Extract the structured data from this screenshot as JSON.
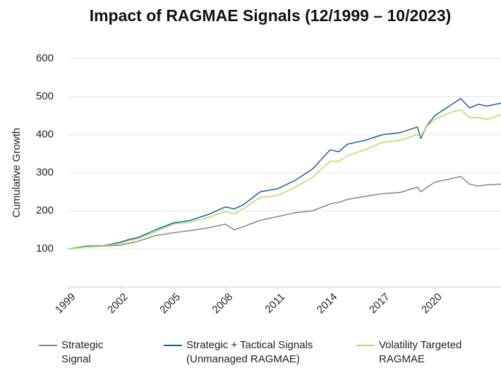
{
  "chart_data": {
    "type": "line",
    "title": "Impact of RAGMAE Signals (12/1999 – 10/2023)",
    "y_label": "Cumulative Growth",
    "x": [
      1999,
      2000,
      2001,
      2002,
      2002.5,
      2003,
      2004,
      2005,
      2006,
      2007,
      2008,
      2008.5,
      2009,
      2010,
      2011,
      2012,
      2013,
      2014,
      2014.5,
      2015,
      2016,
      2017,
      2018,
      2019,
      2019.2,
      2019.5,
      2020,
      2021,
      2021.5,
      2022,
      2022.5,
      2023,
      2023.8
    ],
    "series": [
      {
        "name": "Strategic Signal",
        "color": "#858585",
        "values": [
          100,
          105,
          107,
          110,
          115,
          120,
          135,
          142,
          148,
          155,
          165,
          150,
          158,
          175,
          185,
          195,
          200,
          218,
          222,
          230,
          238,
          245,
          248,
          262,
          250,
          260,
          275,
          285,
          290,
          270,
          265,
          268,
          270
        ]
      },
      {
        "name": "Strategic + Tactical Signals (Unmanaged RAGMAE)",
        "color": "#1a5e9a",
        "values": [
          100,
          107,
          108,
          118,
          125,
          130,
          150,
          168,
          175,
          190,
          210,
          205,
          215,
          250,
          258,
          280,
          310,
          360,
          355,
          375,
          385,
          400,
          405,
          420,
          390,
          420,
          450,
          480,
          495,
          470,
          480,
          475,
          483
        ]
      },
      {
        "name": "Volatility Targeted RAGMAE",
        "color": "#a9e060",
        "values": [
          100,
          105,
          107,
          115,
          122,
          127,
          145,
          165,
          170,
          182,
          198,
          192,
          205,
          235,
          240,
          262,
          288,
          330,
          330,
          345,
          360,
          380,
          385,
          400,
          395,
          420,
          440,
          460,
          465,
          445,
          445,
          440,
          452
        ]
      }
    ],
    "xlim": [
      1999,
      2023.8
    ],
    "xticks": [
      1999,
      2002,
      2005,
      2008,
      2011,
      2014,
      2017,
      2020
    ],
    "ylim": [
      0,
      600
    ],
    "yticks": [
      100,
      200,
      300,
      400,
      500,
      600
    ],
    "grid": true
  }
}
